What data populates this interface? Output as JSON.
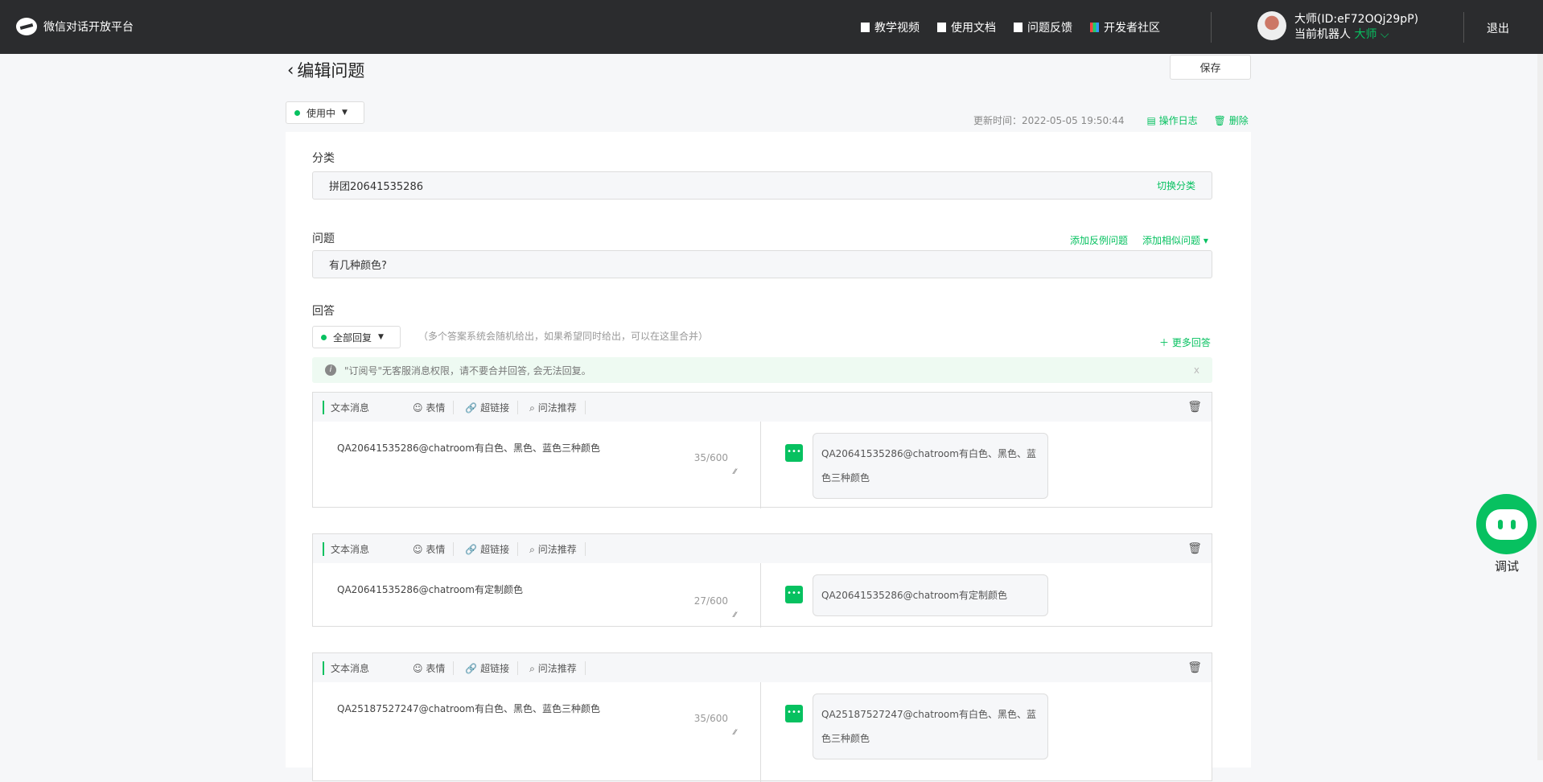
{
  "header": {
    "app_title": "微信对话开放平台",
    "nav": [
      {
        "label": "教学视频",
        "icon": "video-icon"
      },
      {
        "label": "使用文档",
        "icon": "doc-icon"
      },
      {
        "label": "问题反馈",
        "icon": "feedback-icon"
      },
      {
        "label": "开发者社区",
        "icon": "community-icon"
      }
    ],
    "user_name": "大师(ID:eF72OQj29pP)",
    "robot_label": "当前机器人",
    "robot_name": "大师",
    "logout": "退出"
  },
  "page": {
    "title": "编辑问题",
    "save": "保存",
    "status": "使用中",
    "update_time": "更新时间：2022-05-05 19:50:44",
    "log": "操作日志",
    "delete": "删除"
  },
  "category": {
    "label": "分类",
    "value": "拼团20641535286",
    "switch": "切换分类"
  },
  "question": {
    "label": "问题",
    "value": "有几种颜色?",
    "add_counter": "添加反例问题",
    "add_similar": "添加相似问题"
  },
  "answer": {
    "label": "回答",
    "mode": "全部回复",
    "hint": "（多个答案系统会随机给出，如果希望同时给出，可以在这里合并）",
    "more": "更多回答",
    "notice": "\"订阅号\"无客服消息权限，请不要合并回答, 会无法回复。",
    "notice_close": "x",
    "toolbar": {
      "type": "文本消息",
      "emoji": "表情",
      "link": "超链接",
      "recommend": "问法推荐"
    },
    "items": [
      {
        "text": "QA20641535286@chatroom有白色、黑色、蓝色三种颜色",
        "count": "35/600"
      },
      {
        "text": "QA20641535286@chatroom有定制颜色",
        "count": "27/600"
      },
      {
        "text": "QA25187527247@chatroom有白色、黑色、蓝色三种颜色",
        "count": "35/600"
      }
    ]
  },
  "debug": {
    "label": "调试"
  },
  "colors": {
    "accent": "#07c160",
    "topbar": "#2b2c2e"
  }
}
